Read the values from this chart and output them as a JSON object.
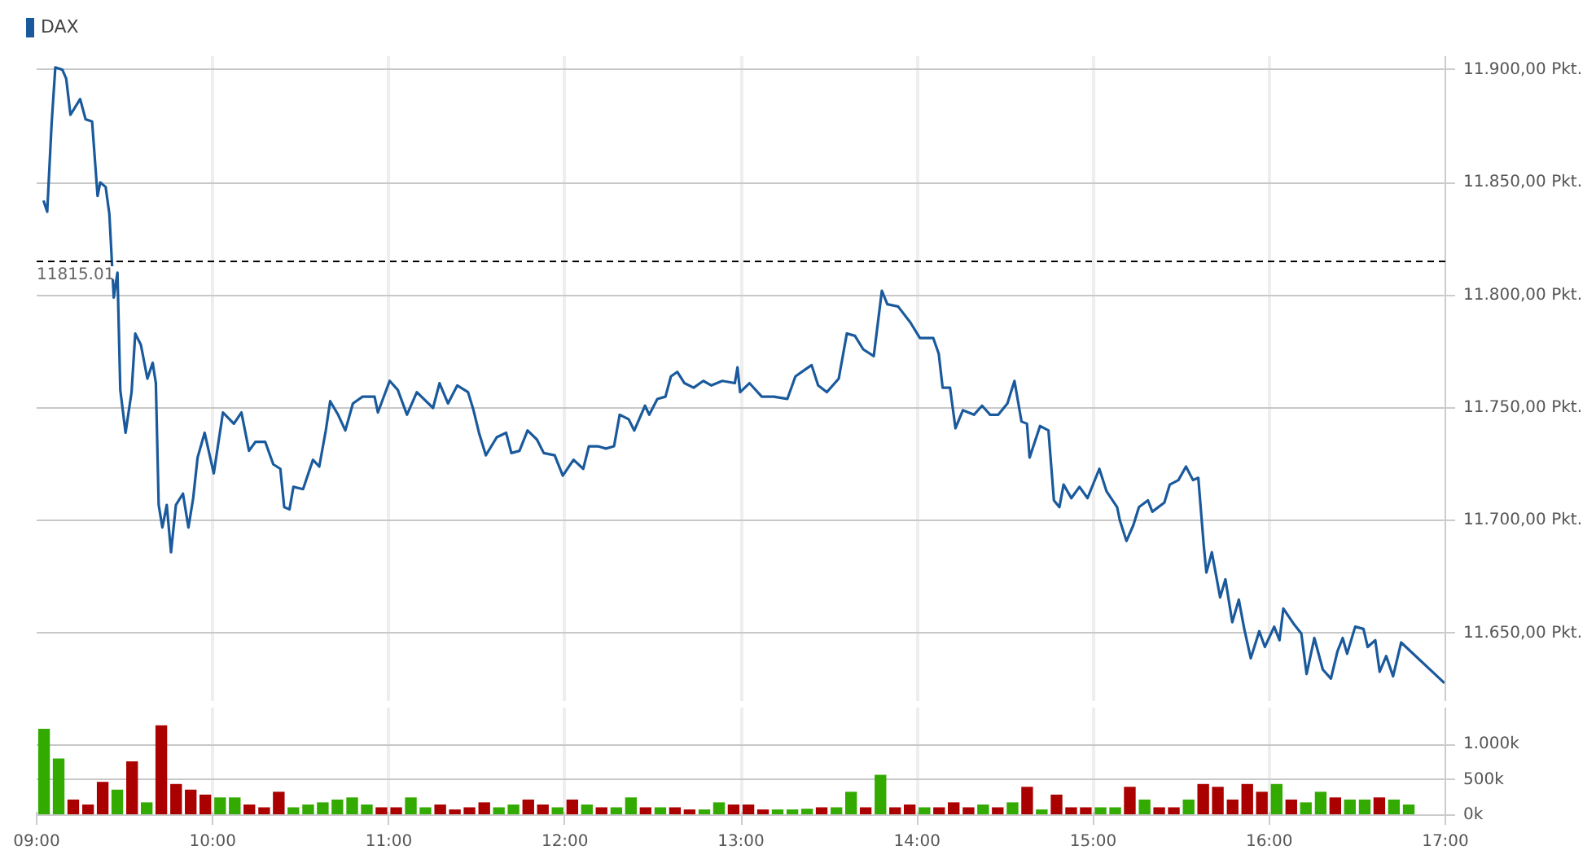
{
  "chart_data": [
    {
      "type": "line",
      "legend": "top left",
      "grid": true,
      "marker": "none",
      "line_style": "solid",
      "tick_labels": "y",
      "xlim": [
        9,
        17
      ],
      "xticks": [
        9,
        10,
        11,
        12,
        13,
        14,
        15,
        16,
        17
      ],
      "ylim": [
        11620,
        11906
      ],
      "yticks": [
        {
          "value": 11650,
          "label": "11.650,00 Pkt."
        },
        {
          "value": 11700,
          "label": "11.700,00 Pkt."
        },
        {
          "value": 11750,
          "label": "11.750,00 Pkt."
        },
        {
          "value": 11800,
          "label": "11.800,00 Pkt."
        },
        {
          "value": 11850,
          "label": "11.850,00 Pkt."
        },
        {
          "value": 11900,
          "label": "11.900,00 Pkt."
        }
      ],
      "ref_lines": [
        {
          "axis": "y",
          "value": 11815.01,
          "label": "11815.01",
          "color": "#000000",
          "line_style": "dashed"
        }
      ],
      "series": [
        {
          "name": "DAX",
          "color": "#1a5a9c",
          "x": [
            9.039,
            9.06,
            9.085,
            9.106,
            9.146,
            9.168,
            9.192,
            9.247,
            9.278,
            9.315,
            9.346,
            9.361,
            9.392,
            9.413,
            9.438,
            9.459,
            9.475,
            9.505,
            9.539,
            9.56,
            9.592,
            9.629,
            9.659,
            9.677,
            9.693,
            9.714,
            9.739,
            9.763,
            9.791,
            9.831,
            9.862,
            9.889,
            9.914,
            9.954,
            10.006,
            10.058,
            10.12,
            10.163,
            10.206,
            10.243,
            10.298,
            10.344,
            10.384,
            10.406,
            10.436,
            10.458,
            10.513,
            10.569,
            10.605,
            10.642,
            10.667,
            10.712,
            10.753,
            10.796,
            10.851,
            10.919,
            10.938,
            11.005,
            11.051,
            11.103,
            11.159,
            11.251,
            11.288,
            11.336,
            11.389,
            11.45,
            11.481,
            11.512,
            11.551,
            11.613,
            11.666,
            11.696,
            11.742,
            11.788,
            11.841,
            11.88,
            11.942,
            11.988,
            12.049,
            12.104,
            12.136,
            12.187,
            12.233,
            12.279,
            12.311,
            12.362,
            12.394,
            12.455,
            12.479,
            12.525,
            12.571,
            12.602,
            12.638,
            12.679,
            12.731,
            12.786,
            12.832,
            12.894,
            12.965,
            12.98,
            12.995,
            13.048,
            13.118,
            13.186,
            13.263,
            13.309,
            13.364,
            13.401,
            13.438,
            13.487,
            13.555,
            13.601,
            13.647,
            13.694,
            13.754,
            13.8,
            13.831,
            13.892,
            13.961,
            14.016,
            14.092,
            14.123,
            14.145,
            14.187,
            14.218,
            14.26,
            14.323,
            14.369,
            14.415,
            14.461,
            14.513,
            14.553,
            14.593,
            14.624,
            14.639,
            14.698,
            14.746,
            14.777,
            14.808,
            14.832,
            14.876,
            14.922,
            14.968,
            15.035,
            15.076,
            15.136,
            15.152,
            15.189,
            15.228,
            15.26,
            15.311,
            15.336,
            15.404,
            15.435,
            15.484,
            15.527,
            15.567,
            15.597,
            15.628,
            15.643,
            15.674,
            15.721,
            15.751,
            15.79,
            15.827,
            15.858,
            15.895,
            15.943,
            15.975,
            16.028,
            16.058,
            16.08,
            16.141,
            16.182,
            16.212,
            16.256,
            16.304,
            16.35,
            16.387,
            16.417,
            16.442,
            16.488,
            16.535,
            16.559,
            16.602,
            16.627,
            16.664,
            16.703,
            16.749,
            16.995
          ],
          "values": [
            11842,
            11837,
            11876,
            11901,
            11900,
            11896,
            11880,
            11887,
            11878,
            11877,
            11844,
            11850,
            11848,
            11836,
            11799,
            11810,
            11758,
            11739,
            11757,
            11783,
            11778,
            11763,
            11770,
            11761,
            11707,
            11697,
            11707,
            11686,
            11707,
            11712,
            11697,
            11710,
            11728,
            11739,
            11721,
            11748,
            11743,
            11748,
            11731,
            11735,
            11735,
            11725,
            11723,
            11706,
            11705,
            11715,
            11714,
            11727,
            11724,
            11740,
            11753,
            11747,
            11740,
            11752,
            11755,
            11755,
            11748,
            11762,
            11758,
            11747,
            11757,
            11750,
            11761,
            11752,
            11760,
            11757,
            11749,
            11739,
            11729,
            11737,
            11739,
            11730,
            11731,
            11740,
            11736,
            11730,
            11729,
            11720,
            11727,
            11723,
            11733,
            11733,
            11732,
            11733,
            11747,
            11745,
            11740,
            11751,
            11747,
            11754,
            11755,
            11764,
            11766,
            11761,
            11759,
            11762,
            11760,
            11762,
            11761,
            11768,
            11757,
            11761,
            11755,
            11755,
            11754,
            11764,
            11767,
            11769,
            11760,
            11757,
            11763,
            11783,
            11782,
            11776,
            11773,
            11802,
            11796,
            11795,
            11788,
            11781,
            11781,
            11774,
            11759,
            11759,
            11741,
            11749,
            11747,
            11751,
            11747,
            11747,
            11752,
            11762,
            11744,
            11743,
            11728,
            11742,
            11740,
            11709,
            11706,
            11716,
            11710,
            11715,
            11710,
            11723,
            11713,
            11706,
            11700,
            11691,
            11698,
            11706,
            11709,
            11704,
            11708,
            11716,
            11718,
            11724,
            11718,
            11719,
            11689,
            11677,
            11686,
            11666,
            11674,
            11655,
            11665,
            11652,
            11639,
            11651,
            11644,
            11653,
            11647,
            11661,
            11654,
            11650,
            11632,
            11648,
            11634,
            11630,
            11642,
            11648,
            11641,
            11653,
            11652,
            11644,
            11647,
            11633,
            11640,
            11631,
            11646,
            11628
          ]
        }
      ]
    },
    {
      "type": "bar",
      "grid": true,
      "xlim": [
        9,
        17
      ],
      "xticks": [
        {
          "value": 9,
          "label": "09:00"
        },
        {
          "value": 10,
          "label": "10:00"
        },
        {
          "value": 11,
          "label": "11:00"
        },
        {
          "value": 12,
          "label": "12:00"
        },
        {
          "value": 13,
          "label": "13:00"
        },
        {
          "value": 14,
          "label": "14:00"
        },
        {
          "value": 15,
          "label": "15:00"
        },
        {
          "value": 16,
          "label": "16:00"
        },
        {
          "value": 17,
          "label": "17:00"
        }
      ],
      "ylim": [
        0,
        1520
      ],
      "yticks": [
        {
          "value": 0,
          "label": "0k"
        },
        {
          "value": 500,
          "label": "500k"
        },
        {
          "value": 1000,
          "label": "1.000k"
        }
      ],
      "x": [
        9.042,
        9.125,
        9.208,
        9.292,
        9.375,
        9.458,
        9.542,
        9.625,
        9.708,
        9.792,
        9.875,
        9.958,
        10.042,
        10.125,
        10.208,
        10.292,
        10.375,
        10.458,
        10.542,
        10.625,
        10.708,
        10.792,
        10.875,
        10.958,
        11.042,
        11.125,
        11.208,
        11.292,
        11.375,
        11.458,
        11.542,
        11.625,
        11.708,
        11.792,
        11.875,
        11.958,
        12.042,
        12.125,
        12.208,
        12.292,
        12.375,
        12.458,
        12.542,
        12.625,
        12.708,
        12.792,
        12.875,
        12.958,
        13.042,
        13.125,
        13.208,
        13.292,
        13.375,
        13.458,
        13.542,
        13.625,
        13.708,
        13.792,
        13.875,
        13.958,
        14.042,
        14.125,
        14.208,
        14.292,
        14.375,
        14.458,
        14.542,
        14.625,
        14.708,
        14.792,
        14.875,
        14.958,
        15.042,
        15.125,
        15.208,
        15.292,
        15.375,
        15.458,
        15.542,
        15.625,
        15.708,
        15.792,
        15.875,
        15.958,
        16.042,
        16.125,
        16.208,
        16.292,
        16.375,
        16.458,
        16.542,
        16.625,
        16.708,
        16.792
      ],
      "values": [
        1220,
        800,
        220,
        150,
        470,
        360,
        760,
        180,
        1270,
        440,
        360,
        290,
        250,
        250,
        150,
        110,
        330,
        110,
        150,
        180,
        220,
        250,
        150,
        110,
        110,
        250,
        110,
        150,
        80,
        110,
        180,
        110,
        150,
        220,
        150,
        110,
        220,
        150,
        110,
        110,
        250,
        110,
        110,
        110,
        80,
        80,
        180,
        150,
        150,
        80,
        80,
        80,
        90,
        110,
        110,
        330,
        110,
        570,
        110,
        150,
        110,
        110,
        180,
        110,
        150,
        110,
        180,
        400,
        80,
        290,
        110,
        110,
        110,
        110,
        400,
        220,
        110,
        110,
        220,
        440,
        400,
        220,
        440,
        330,
        440,
        220,
        180,
        330,
        250,
        220,
        220,
        250,
        220,
        150
      ],
      "colors": [
        "#33aa00",
        "#33aa00",
        "#aa0000",
        "#aa0000",
        "#aa0000",
        "#33aa00",
        "#aa0000",
        "#33aa00",
        "#aa0000",
        "#aa0000",
        "#aa0000",
        "#aa0000",
        "#33aa00",
        "#33aa00",
        "#aa0000",
        "#aa0000",
        "#aa0000",
        "#33aa00",
        "#33aa00",
        "#33aa00",
        "#33aa00",
        "#33aa00",
        "#33aa00",
        "#aa0000",
        "#aa0000",
        "#33aa00",
        "#33aa00",
        "#aa0000",
        "#aa0000",
        "#aa0000",
        "#aa0000",
        "#33aa00",
        "#33aa00",
        "#aa0000",
        "#aa0000",
        "#33aa00",
        "#aa0000",
        "#33aa00",
        "#aa0000",
        "#33aa00",
        "#33aa00",
        "#aa0000",
        "#33aa00",
        "#aa0000",
        "#aa0000",
        "#33aa00",
        "#33aa00",
        "#aa0000",
        "#aa0000",
        "#aa0000",
        "#33aa00",
        "#33aa00",
        "#33aa00",
        "#aa0000",
        "#33aa00",
        "#33aa00",
        "#aa0000",
        "#33aa00",
        "#aa0000",
        "#aa0000",
        "#33aa00",
        "#aa0000",
        "#aa0000",
        "#aa0000",
        "#33aa00",
        "#aa0000",
        "#33aa00",
        "#aa0000",
        "#33aa00",
        "#aa0000",
        "#aa0000",
        "#aa0000",
        "#33aa00",
        "#33aa00",
        "#aa0000",
        "#33aa00",
        "#aa0000",
        "#aa0000",
        "#33aa00",
        "#aa0000",
        "#aa0000",
        "#aa0000",
        "#aa0000",
        "#aa0000",
        "#33aa00",
        "#aa0000",
        "#33aa00",
        "#33aa00",
        "#aa0000",
        "#33aa00",
        "#33aa00",
        "#aa0000",
        "#33aa00",
        "#33aa00"
      ]
    }
  ]
}
